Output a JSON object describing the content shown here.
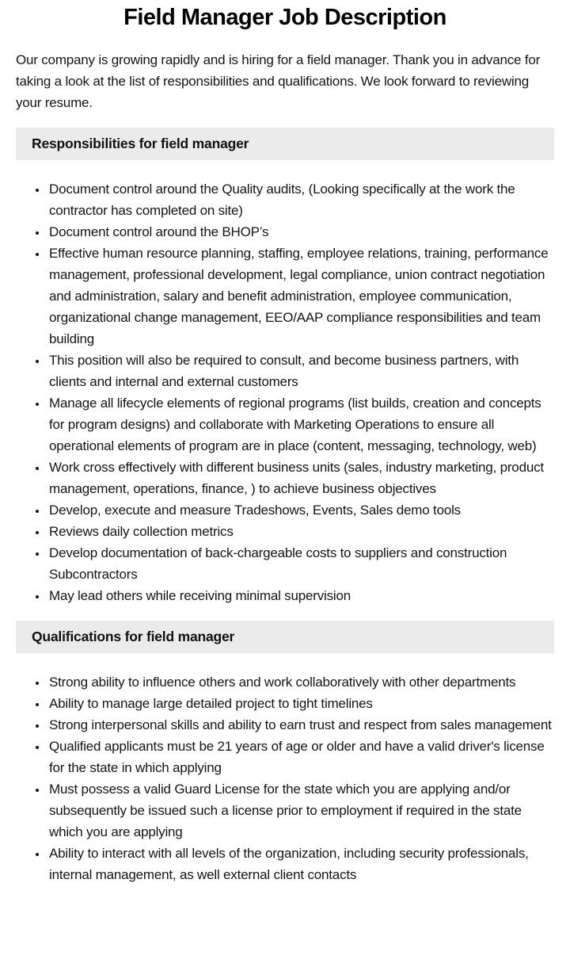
{
  "page": {
    "title": "Field Manager Job Description",
    "intro": "Our company is growing rapidly and is hiring for a field manager. Thank you in advance for taking a look at the list of responsibilities and qualifications. We look forward to reviewing your resume."
  },
  "colors": {
    "section_bar_background": "#ebebeb",
    "text": "#151515"
  },
  "sections": [
    {
      "heading": "Responsibilities for field manager",
      "items": [
        "Document control around the Quality audits, (Looking specifically at the work the contractor has completed on site)",
        "Document control around the BHOP’s",
        "Effective human resource planning, staffing, employee relations, training, performance management, professional development, legal compliance, union contract negotiation and administration, salary and benefit administration, employee communication, organizational change management, EEO/AAP compliance responsibilities and team building",
        "This position will also be required to consult, and become business partners, with clients and internal and external customers",
        "Manage all lifecycle elements of regional programs (list builds, creation and concepts for program designs) and collaborate with Marketing Operations to ensure all operational elements of program are in place (content, messaging, technology, web)",
        "Work cross effectively with different business units (sales, industry marketing, product management, operations, finance, ) to achieve business objectives",
        "Develop, execute and measure Tradeshows, Events, Sales demo tools",
        "Reviews daily collection metrics",
        "Develop documentation of back-chargeable costs to suppliers and construction Subcontractors",
        "May lead others while receiving minimal supervision"
      ]
    },
    {
      "heading": "Qualifications for field manager",
      "items": [
        "Strong ability to influence others and work collaboratively with other departments",
        "Ability to manage large detailed project to tight timelines",
        "Strong interpersonal skills and ability to earn trust and respect from sales management",
        "Qualified applicants must be 21 years of age or older and have a valid driver's license for the state in which applying",
        "Must possess a valid Guard License for the state which you are applying and/or subsequently be issued such a license prior to employment if required in the state which you are applying",
        "Ability to interact with all levels of the organization, including security professionals, internal management, as well external client contacts"
      ]
    }
  ]
}
